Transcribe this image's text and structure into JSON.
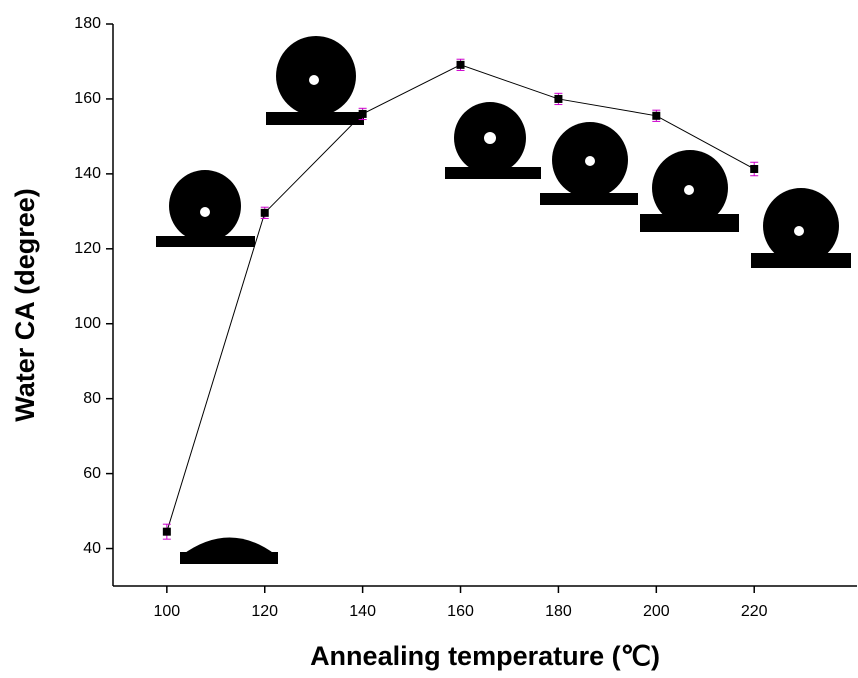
{
  "chart_data": {
    "type": "line",
    "x_label": "Annealing temperature (℃)",
    "y_label": "Water CA (degree)",
    "x": [
      100,
      120,
      140,
      160,
      180,
      200,
      220
    ],
    "series": [
      {
        "name": "Water CA",
        "color": "#000000",
        "error_color": "#cc00cc",
        "values": [
          44.5,
          129.6,
          156,
          169.1,
          160,
          155.5,
          141.3
        ],
        "errors": [
          2,
          1.5,
          1.5,
          1.5,
          1.5,
          1.5,
          1.8
        ]
      }
    ],
    "xlim": [
      89,
      241
    ],
    "xticks": [
      100,
      120,
      140,
      160,
      180,
      200,
      220
    ],
    "ylim": [
      30,
      180
    ],
    "yticks": [
      40,
      60,
      80,
      100,
      120,
      140,
      160,
      180
    ]
  }
}
